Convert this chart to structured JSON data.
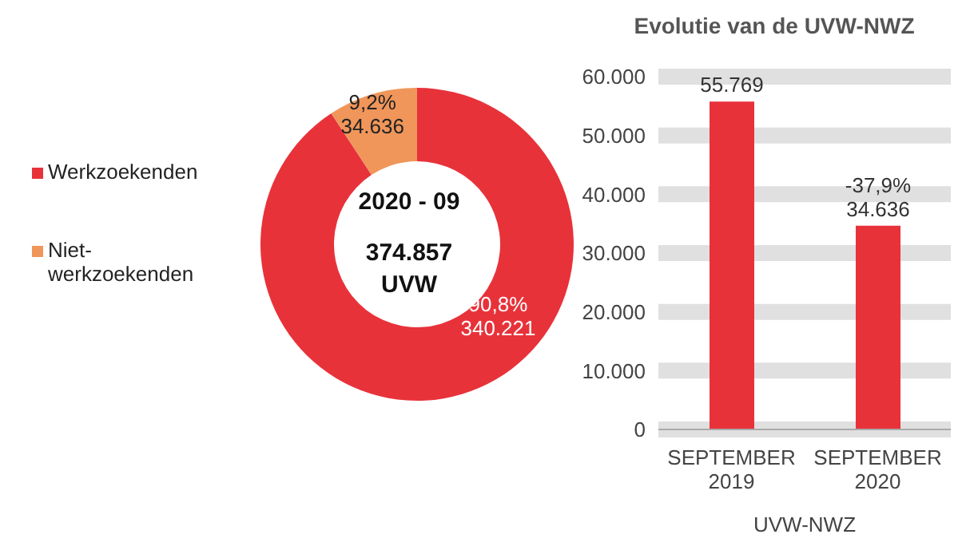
{
  "chart_data": [
    {
      "type": "donut",
      "categories": [
        "Werkzoekenden",
        "Niet-werkzoekenden"
      ],
      "values": [
        340221,
        34636
      ],
      "colors": [
        "#e8323a",
        "#f0965a"
      ],
      "value_labels": [
        "90,8%\n340.221",
        "9,2%\n34.636"
      ],
      "annotations": [
        "2020 - 09",
        "374.857\nUVW"
      ],
      "legend": "left"
    },
    {
      "type": "bar",
      "title": "Evolutie van de UVW-NWZ",
      "xlabel": "UVW-NWZ",
      "categories": [
        "SEPTEMBER 2019",
        "SEPTEMBER 2020"
      ],
      "values": [
        55769,
        34636
      ],
      "color": "#e8323a",
      "value_labels": [
        "55.769",
        "-37,9%\n34.636"
      ],
      "ylim": [
        0,
        60000
      ],
      "yticks": [
        0,
        {
          "value": 10000,
          "label": "10.000"
        },
        {
          "value": 20000,
          "label": "20.000"
        },
        {
          "value": 30000,
          "label": "30.000"
        },
        {
          "value": 40000,
          "label": "40.000"
        },
        {
          "value": 50000,
          "label": "50.000"
        },
        {
          "value": 60000,
          "label": "60.000"
        }
      ],
      "grid": "y"
    }
  ]
}
